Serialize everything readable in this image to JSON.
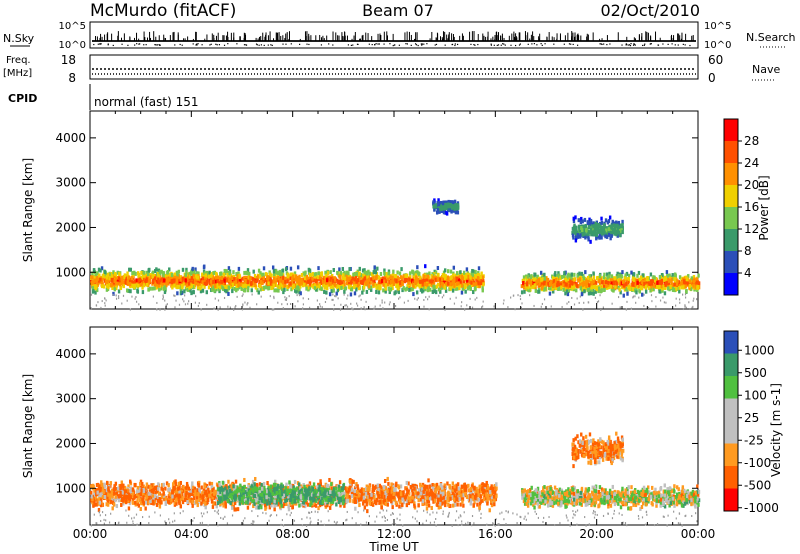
{
  "header": {
    "station": "McMurdo (fitACF)",
    "beam": "Beam 07",
    "date": "02/Oct/2010"
  },
  "noise_panel": {
    "left_label": "N.Sky",
    "right_label": "N.Search",
    "left_ticks": [
      "10^5",
      "10^0"
    ],
    "right_ticks": [
      "10^5",
      "10^0"
    ]
  },
  "freq_panel": {
    "left_label_line1": "Freq.",
    "left_label_line2": "[MHz]",
    "left_ticks": [
      "18",
      "8"
    ],
    "right_label": "Nave",
    "right_ticks": [
      "60",
      "0"
    ]
  },
  "cpid": {
    "label": "CPID",
    "value": "normal (fast) 151"
  },
  "x_axis": {
    "label": "Time UT",
    "ticks": [
      "00:00",
      "04:00",
      "08:00",
      "12:00",
      "16:00",
      "20:00",
      "00:00"
    ]
  },
  "colors": {
    "power_scale": [
      "#0000ff",
      "#2b4fb8",
      "#3a9a6a",
      "#78c850",
      "#f0d000",
      "#ff9000",
      "#ff5000",
      "#ff0000"
    ],
    "velocity_scale": [
      "#ff0000",
      "#ff6000",
      "#ff9a20",
      "#c0c0c0",
      "#c0c0c0",
      "#50c040",
      "#3a9a6a",
      "#2b4fb8"
    ]
  },
  "chart_data": [
    {
      "type": "heatmap",
      "title": "",
      "ylabel": "Slant Range [km]",
      "xlabel": "Time UT",
      "xlim": [
        0,
        24
      ],
      "ylim": [
        180,
        4600
      ],
      "yticks": [
        "1000",
        "2000",
        "3000",
        "4000"
      ],
      "colorbar": {
        "label": "Power [dB]",
        "ticks": [
          "4",
          "8",
          "12",
          "16",
          "20",
          "24",
          "28"
        ],
        "range": [
          0,
          32
        ]
      },
      "features": [
        {
          "t_start": 0,
          "t_end": 15.5,
          "range_center_km": 850,
          "width_km": 350,
          "max_value": 30
        },
        {
          "t_start": 17,
          "t_end": 24,
          "range_center_km": 800,
          "width_km": 300,
          "max_value": 30
        },
        {
          "t_start": 19,
          "t_end": 21,
          "range_center_km": 2000,
          "width_km": 300,
          "max_value": 14
        },
        {
          "t_start": 13.5,
          "t_end": 14.5,
          "range_center_km": 2500,
          "width_km": 200,
          "max_value": 12
        }
      ]
    },
    {
      "type": "heatmap",
      "title": "",
      "ylabel": "Slant Range [km]",
      "xlabel": "Time UT",
      "xlim": [
        0,
        24
      ],
      "ylim": [
        180,
        4600
      ],
      "yticks": [
        "1000",
        "2000",
        "3000",
        "4000"
      ],
      "colorbar": {
        "label": "Velocity [m s-1]",
        "ticks": [
          "1000",
          "500",
          "100",
          "25",
          "-25",
          "-100",
          "-500",
          "-1000"
        ],
        "range": [
          -1000,
          1000
        ]
      },
      "features": [
        {
          "t_start": 0,
          "t_end": 16,
          "range_center_km": 900,
          "width_km": 400,
          "value": -100
        },
        {
          "t_start": 5,
          "t_end": 10,
          "range_center_km": 900,
          "width_km": 300,
          "value": 100
        },
        {
          "t_start": 17,
          "t_end": 24,
          "range_center_km": 850,
          "width_km": 300,
          "value": 0
        },
        {
          "t_start": 19,
          "t_end": 21,
          "range_center_km": 1900,
          "width_km": 400,
          "value": -100
        }
      ]
    }
  ]
}
